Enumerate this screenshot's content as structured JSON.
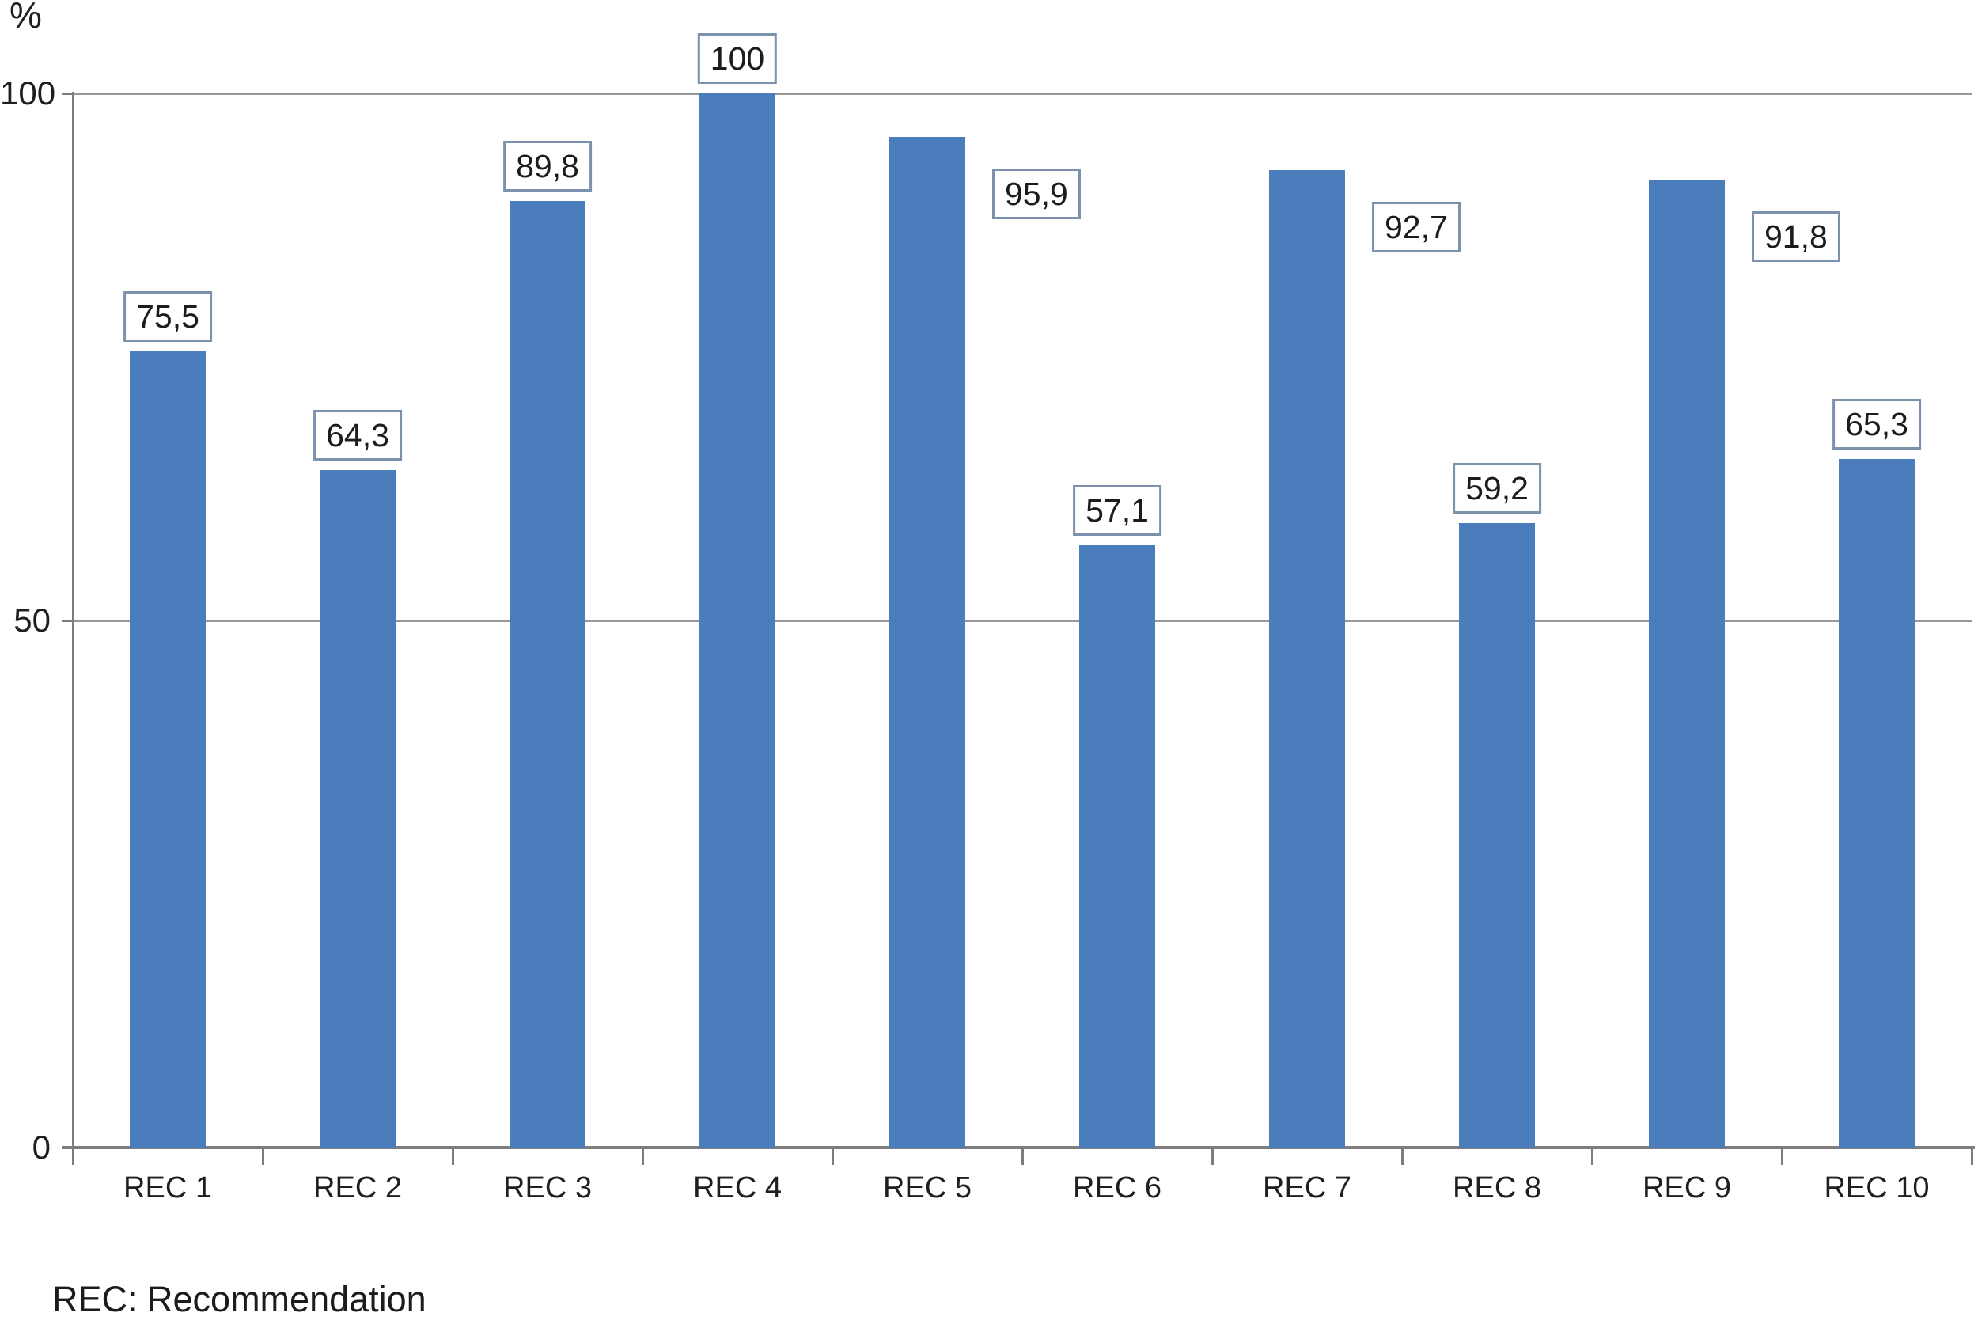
{
  "chart_data": {
    "type": "bar",
    "title": "",
    "xlabel": "",
    "ylabel": "%",
    "y_axis_unit": "%",
    "ylim": [
      0,
      100
    ],
    "yticks": [
      0,
      50,
      100
    ],
    "ytick_labels": [
      "0",
      "50",
      "100"
    ],
    "grid": "horizontal gridlines at 50 and 100, drawn behind bars",
    "legend": "none",
    "categories": [
      "REC 1",
      "REC 2",
      "REC 3",
      "REC 4",
      "REC 5",
      "REC 6",
      "REC 7",
      "REC 8",
      "REC 9",
      "REC 10"
    ],
    "values": [
      75.5,
      64.3,
      89.8,
      100,
      95.9,
      57.1,
      92.7,
      59.2,
      91.8,
      65.3
    ],
    "data_labels": [
      "75,5",
      "64,3",
      "89,8",
      "100",
      "95,9",
      "57,1",
      "92,7",
      "59,2",
      "91,8",
      "65,3"
    ],
    "data_label_placements": [
      "above",
      "above",
      "above",
      "above",
      "right",
      "above",
      "right",
      "above",
      "right",
      "above"
    ],
    "footnote": "REC: Recommendation"
  },
  "colors": {
    "bar_fill": "#4b7dbc",
    "value_label_border": "#7b91ad",
    "value_label_background": "#ffffff",
    "gridline": "#979797",
    "axis_line": "#7d7d7d",
    "text": "#1f1f1f"
  }
}
